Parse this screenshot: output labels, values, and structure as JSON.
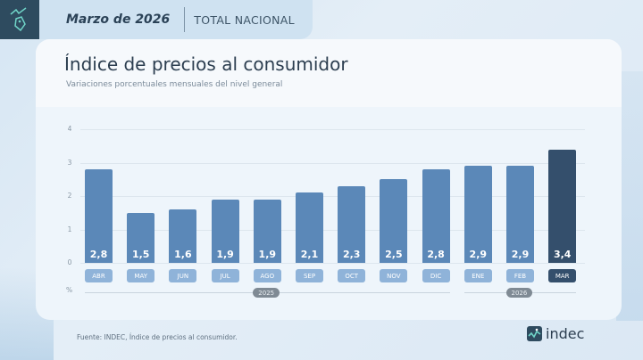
{
  "header": {
    "period": "Marzo de 2026",
    "scope": "TOTAL NACIONAL"
  },
  "title": "Índice de precios al consumidor",
  "subtitle": "Variaciones porcentuales mensuales del nivel general",
  "footer": {
    "source": "Fuente: INDEC, Índice de precios al consumidor.",
    "brand": "indec"
  },
  "colors": {
    "bar": "#5b88b8",
    "bar_highlight": "#344f6c",
    "month_label_bg": "#8fb3d9"
  },
  "chart_data": {
    "type": "bar",
    "title": "Índice de precios al consumidor",
    "subtitle": "Variaciones porcentuales mensuales del nivel general",
    "categories": [
      "ABR",
      "MAY",
      "JUN",
      "JUL",
      "AGO",
      "SEP",
      "OCT",
      "NOV",
      "DIC",
      "ENE",
      "FEB",
      "MAR"
    ],
    "values": [
      2.8,
      1.5,
      1.6,
      1.9,
      1.9,
      2.1,
      2.3,
      2.5,
      2.8,
      2.9,
      2.9,
      3.4
    ],
    "value_labels": [
      "2,8",
      "1,5",
      "1,6",
      "1,9",
      "1,9",
      "2,1",
      "2,3",
      "2,5",
      "2,8",
      "2,9",
      "2,9",
      "3,4"
    ],
    "highlight_index": 11,
    "year_groups": [
      {
        "label": "2025",
        "from": 0,
        "to": 8
      },
      {
        "label": "2026",
        "from": 9,
        "to": 11
      }
    ],
    "xlabel": "",
    "ylabel": "%",
    "ylim": [
      0,
      4
    ],
    "yticks": [
      0,
      1,
      2,
      3,
      4
    ],
    "grid": true
  }
}
